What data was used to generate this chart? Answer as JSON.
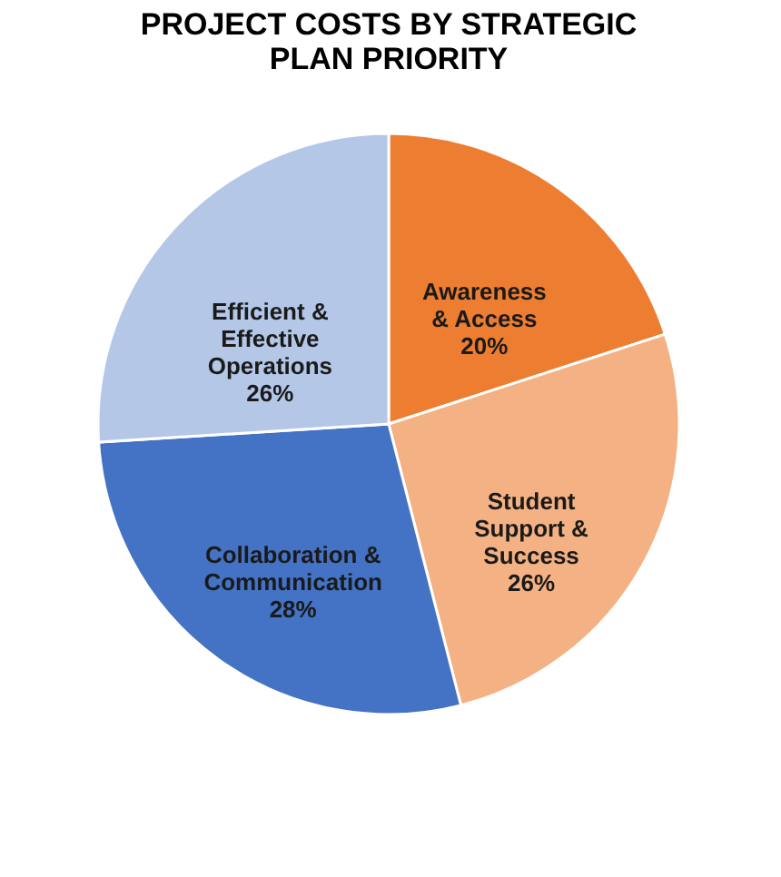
{
  "chart_data": {
    "type": "pie",
    "title": "PROJECT COSTS BY STRATEGIC\nPLAN PRIORITY",
    "categories": [
      "Awareness\n& Access",
      "Student\nSupport &\nSuccess",
      "Collaboration &\nCommunication",
      "Efficient &\nEffective\nOperations"
    ],
    "values": [
      20,
      26,
      28,
      26
    ],
    "value_labels": [
      "20%",
      "26%",
      "28%",
      "26%"
    ],
    "colors": [
      "#ed7d31",
      "#f4b183",
      "#4472c4",
      "#b4c7e7"
    ]
  }
}
